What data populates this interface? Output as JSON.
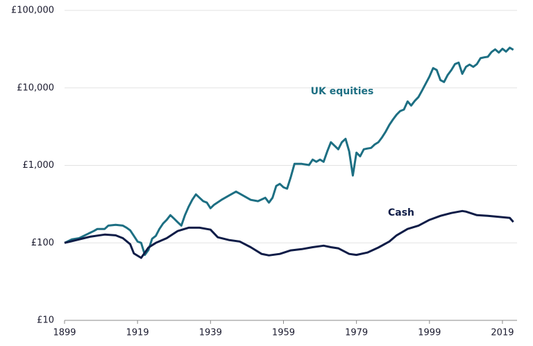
{
  "chart_data": {
    "type": "line",
    "log_scale": true,
    "grid": true,
    "xlim": [
      1899,
      2023
    ],
    "xticks": [
      1899,
      1919,
      1939,
      1959,
      1979,
      1999,
      2019
    ],
    "ylim": [
      10,
      100000
    ],
    "yticks": [
      {
        "value": 10,
        "label": "£10"
      },
      {
        "value": 100,
        "label": "£100"
      },
      {
        "value": 1000,
        "label": "£1,000"
      },
      {
        "value": 10000,
        "label": "£10,000"
      },
      {
        "value": 100000,
        "label": "£100,000"
      }
    ],
    "series": [
      {
        "name": "UK equities",
        "color": "#1d6f83",
        "x": [
          1899,
          1901,
          1903,
          1905,
          1907,
          1908,
          1910,
          1911,
          1913,
          1915,
          1916,
          1917,
          1918,
          1919,
          1920,
          1921,
          1922,
          1923,
          1924,
          1925,
          1926,
          1927,
          1928,
          1929,
          1930,
          1931,
          1932,
          1933,
          1934,
          1935,
          1936,
          1937,
          1938,
          1939,
          1940,
          1942,
          1944,
          1946,
          1948,
          1950,
          1952,
          1954,
          1955,
          1956,
          1957,
          1958,
          1959,
          1960,
          1961,
          1962,
          1964,
          1966,
          1967,
          1968,
          1969,
          1970,
          1971,
          1972,
          1973,
          1974,
          1975,
          1976,
          1977,
          1978,
          1979,
          1980,
          1981,
          1982,
          1983,
          1984,
          1985,
          1986,
          1987,
          1988,
          1989,
          1990,
          1991,
          1992,
          1993,
          1994,
          1995,
          1996,
          1997,
          1998,
          1999,
          2000,
          2001,
          2002,
          2003,
          2004,
          2005,
          2006,
          2007,
          2008,
          2009,
          2010,
          2011,
          2012,
          2013,
          2014,
          2015,
          2016,
          2017,
          2018,
          2019,
          2020,
          2021,
          2022
        ],
        "values": [
          100,
          111,
          115,
          128,
          142,
          151,
          151,
          167,
          171,
          167,
          157,
          145,
          123,
          104,
          100,
          70,
          81,
          113,
          123,
          151,
          178,
          198,
          228,
          206,
          185,
          167,
          228,
          292,
          359,
          423,
          382,
          345,
          331,
          280,
          311,
          359,
          406,
          459,
          406,
          359,
          345,
          382,
          331,
          382,
          542,
          577,
          521,
          500,
          708,
          1047,
          1047,
          1010,
          1187,
          1113,
          1187,
          1113,
          1519,
          1990,
          1793,
          1613,
          1990,
          2200,
          1519,
          740,
          1460,
          1310,
          1613,
          1650,
          1680,
          1860,
          1990,
          2300,
          2720,
          3330,
          3900,
          4520,
          5030,
          5250,
          6690,
          5920,
          6820,
          7620,
          9300,
          11400,
          14000,
          18000,
          17000,
          12600,
          11900,
          14700,
          17000,
          20300,
          21200,
          15200,
          18700,
          20000,
          18700,
          20300,
          24200,
          24800,
          25200,
          29000,
          31400,
          28600,
          32000,
          29400,
          33000,
          31000
        ]
      },
      {
        "name": "Cash",
        "color": "#0e1c47",
        "x": [
          1899,
          1902,
          1906,
          1910,
          1913,
          1915,
          1917,
          1918,
          1920,
          1922,
          1924,
          1927,
          1930,
          1933,
          1936,
          1939,
          1941,
          1944,
          1947,
          1950,
          1953,
          1955,
          1958,
          1961,
          1964,
          1967,
          1970,
          1972,
          1974,
          1977,
          1979,
          1982,
          1985,
          1988,
          1990,
          1993,
          1996,
          1999,
          2002,
          2005,
          2008,
          2009,
          2012,
          2015,
          2017,
          2021,
          2022
        ],
        "values": [
          100,
          108,
          120,
          128,
          125,
          115,
          96,
          73,
          64,
          87,
          100,
          115,
          142,
          157,
          157,
          148,
          118,
          109,
          104,
          88,
          72,
          69,
          72,
          80,
          83,
          88,
          92,
          88,
          85,
          72,
          70,
          75,
          87,
          104,
          125,
          151,
          167,
          198,
          223,
          243,
          258,
          253,
          228,
          223,
          219,
          210,
          186
        ]
      }
    ]
  }
}
